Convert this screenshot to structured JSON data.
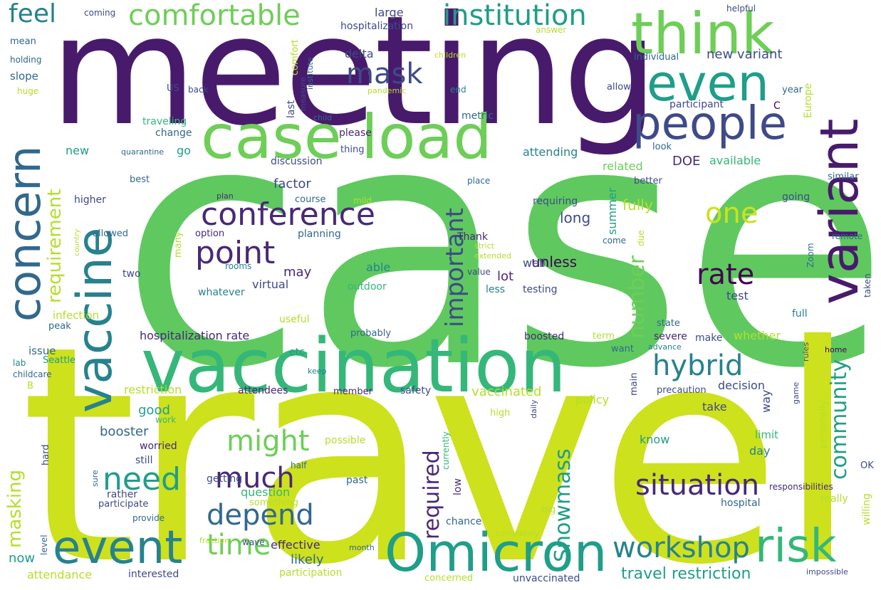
{
  "colors": {
    "background": "#ffffff",
    "palette": [
      "#440154",
      "#482878",
      "#3e4a89",
      "#31688e",
      "#26828e",
      "#1f9e89",
      "#35b779",
      "#6ece58",
      "#b5de2b",
      "#cde11d"
    ]
  },
  "words": [
    {
      "text": "case",
      "color": "#5fc95f"
    },
    {
      "text": "travel",
      "color": "#cde11d"
    },
    {
      "text": "meeting",
      "color": "#481a6c"
    },
    {
      "text": "vaccination",
      "color": "#35b779"
    },
    {
      "text": "variant",
      "color": "#481a6c"
    },
    {
      "text": "vaccine",
      "color": "#26828e"
    },
    {
      "text": "case load",
      "color": "#6ece58"
    },
    {
      "text": "think",
      "color": "#6ece58"
    },
    {
      "text": "concern",
      "color": "#31688e"
    },
    {
      "text": "Omicron",
      "color": "#1f9e89"
    },
    {
      "text": "even",
      "color": "#1f9e89"
    },
    {
      "text": "people",
      "color": "#3e4a89"
    },
    {
      "text": "event",
      "color": "#26828e"
    },
    {
      "text": "risk",
      "color": "#35b779"
    },
    {
      "text": "conference",
      "color": "#482878"
    },
    {
      "text": "point",
      "color": "#482878"
    },
    {
      "text": "comfortable",
      "color": "#6ece58"
    },
    {
      "text": "institution",
      "color": "#1f9e89"
    },
    {
      "text": "feel",
      "color": "#26828e"
    },
    {
      "text": "mask",
      "color": "#3e4a89"
    },
    {
      "text": "rate",
      "color": "#440154"
    },
    {
      "text": "hybrid",
      "color": "#26828e"
    },
    {
      "text": "situation",
      "color": "#482878"
    },
    {
      "text": "workshop",
      "color": "#26828e"
    },
    {
      "text": "need",
      "color": "#1f9e89"
    },
    {
      "text": "depend",
      "color": "#31688e"
    },
    {
      "text": "much",
      "color": "#482878"
    },
    {
      "text": "might",
      "color": "#6ece58"
    },
    {
      "text": "time",
      "color": "#6ece58"
    },
    {
      "text": "one",
      "color": "#cde11d"
    },
    {
      "text": "important",
      "color": "#3e4a89"
    },
    {
      "text": "number",
      "color": "#6ece58"
    },
    {
      "text": "community",
      "color": "#1f9e89"
    },
    {
      "text": "Snowmass",
      "color": "#1f9e89"
    },
    {
      "text": "required",
      "color": "#482878"
    },
    {
      "text": "requirement",
      "color": "#b5de2b"
    },
    {
      "text": "masking",
      "color": "#b5de2b"
    },
    {
      "text": "travel restriction",
      "color": "#1f9e89"
    },
    {
      "text": "vaccinated",
      "color": "#b5de2b"
    },
    {
      "text": "restriction",
      "color": "#b5de2b"
    },
    {
      "text": "booster",
      "color": "#31688e"
    },
    {
      "text": "good",
      "color": "#1f9e89"
    },
    {
      "text": "effective",
      "color": "#482878"
    },
    {
      "text": "likely",
      "color": "#31688e"
    },
    {
      "text": "question",
      "color": "#35b779"
    },
    {
      "text": "attendance",
      "color": "#b5de2b"
    },
    {
      "text": "participation",
      "color": "#b5de2b"
    },
    {
      "text": "now",
      "color": "#1f9e89"
    },
    {
      "text": "new variant",
      "color": "#3e4a89"
    },
    {
      "text": "delta",
      "color": "#3e4a89"
    },
    {
      "text": "large",
      "color": "#3e4a89"
    },
    {
      "text": "hospitalization",
      "color": "#3e4a89"
    },
    {
      "text": "hospitalization rate",
      "color": "#482878"
    },
    {
      "text": "long",
      "color": "#3e4a89"
    },
    {
      "text": "fully",
      "color": "#b5de2b"
    },
    {
      "text": "factor",
      "color": "#3e4a89"
    },
    {
      "text": "may",
      "color": "#482878"
    },
    {
      "text": "virtual",
      "color": "#3e4a89"
    },
    {
      "text": "unless",
      "color": "#440154"
    },
    {
      "text": "lot",
      "color": "#482878"
    },
    {
      "text": "able",
      "color": "#26828e"
    },
    {
      "text": "outdoor",
      "color": "#35b779"
    },
    {
      "text": "less",
      "color": "#26828e"
    },
    {
      "text": "testing",
      "color": "#3e4a89"
    },
    {
      "text": "test",
      "color": "#3e4a89"
    },
    {
      "text": "attending",
      "color": "#26828e"
    },
    {
      "text": "related",
      "color": "#6ece58"
    },
    {
      "text": "DOE",
      "color": "#482878"
    },
    {
      "text": "available",
      "color": "#35b779"
    },
    {
      "text": "going",
      "color": "#3e4a89"
    },
    {
      "text": "participant",
      "color": "#3e4a89"
    },
    {
      "text": "discussion",
      "color": "#3e4a89"
    },
    {
      "text": "please",
      "color": "#482878"
    },
    {
      "text": "thing",
      "color": "#3e4a89"
    },
    {
      "text": "metric",
      "color": "#31688e"
    },
    {
      "text": "change",
      "color": "#31688e"
    },
    {
      "text": "traveling",
      "color": "#35b779"
    },
    {
      "text": "go",
      "color": "#1f9e89"
    },
    {
      "text": "new",
      "color": "#1f9e89"
    },
    {
      "text": "quarantine",
      "color": "#31688e"
    },
    {
      "text": "best",
      "color": "#31688e"
    },
    {
      "text": "higher",
      "color": "#3e4a89"
    },
    {
      "text": "course",
      "color": "#31688e"
    },
    {
      "text": "plan",
      "color": "#482878"
    },
    {
      "text": "planning",
      "color": "#31688e"
    },
    {
      "text": "option",
      "color": "#482878"
    },
    {
      "text": "Thank",
      "color": "#482878"
    },
    {
      "text": "well",
      "color": "#3e4a89"
    },
    {
      "text": "allowed",
      "color": "#31688e"
    },
    {
      "text": "many",
      "color": "#b5de2b"
    },
    {
      "text": "two",
      "color": "#3e4a89"
    },
    {
      "text": "rooms",
      "color": "#26828e"
    },
    {
      "text": "whatever",
      "color": "#26828e"
    },
    {
      "text": "infection",
      "color": "#b5de2b"
    },
    {
      "text": "peak",
      "color": "#31688e"
    },
    {
      "text": "useful",
      "color": "#b5de2b"
    },
    {
      "text": "etc",
      "color": "#1f9e89"
    },
    {
      "text": "probably",
      "color": "#31688e"
    },
    {
      "text": "issue",
      "color": "#31688e"
    },
    {
      "text": "Seattle",
      "color": "#1f9e89"
    },
    {
      "text": "lab",
      "color": "#26828e"
    },
    {
      "text": "childcare",
      "color": "#31688e"
    },
    {
      "text": "B",
      "color": "#b5de2b"
    },
    {
      "text": "attendees",
      "color": "#482878"
    },
    {
      "text": "member",
      "color": "#482878"
    },
    {
      "text": "safety",
      "color": "#3e4a89"
    },
    {
      "text": "worried",
      "color": "#482878"
    },
    {
      "text": "still",
      "color": "#3e4a89"
    },
    {
      "text": "getting",
      "color": "#3e4a89"
    },
    {
      "text": "rather",
      "color": "#3e4a89"
    },
    {
      "text": "participate",
      "color": "#3e4a89"
    },
    {
      "text": "something",
      "color": "#b5de2b"
    },
    {
      "text": "provide",
      "color": "#31688e"
    },
    {
      "text": "level",
      "color": "#31688e"
    },
    {
      "text": "wave",
      "color": "#3e4a89"
    },
    {
      "text": "month",
      "color": "#31688e"
    },
    {
      "text": "interested",
      "color": "#3e4a89"
    },
    {
      "text": "fraction",
      "color": "#b5de2b"
    },
    {
      "text": "past",
      "color": "#31688e"
    },
    {
      "text": "possible",
      "color": "#b5de2b"
    },
    {
      "text": "half",
      "color": "#31688e"
    },
    {
      "text": "currently",
      "color": "#35b779"
    },
    {
      "text": "low",
      "color": "#482878"
    },
    {
      "text": "chance",
      "color": "#31688e"
    },
    {
      "text": "concerned",
      "color": "#b5de2b"
    },
    {
      "text": "unvaccinated",
      "color": "#3e4a89"
    },
    {
      "text": "completely",
      "color": "#b5de2b"
    },
    {
      "text": "big",
      "color": "#b5de2b"
    },
    {
      "text": "high",
      "color": "#b5de2b"
    },
    {
      "text": "know",
      "color": "#1f9e89"
    },
    {
      "text": "limit",
      "color": "#35b779"
    },
    {
      "text": "day",
      "color": "#26828e"
    },
    {
      "text": "way",
      "color": "#3e4a89"
    },
    {
      "text": "take",
      "color": "#3e4a89"
    },
    {
      "text": "decision",
      "color": "#3e4a89"
    },
    {
      "text": "policy",
      "color": "#b5de2b"
    },
    {
      "text": "precaution",
      "color": "#3e4a89"
    },
    {
      "text": "main",
      "color": "#3e4a89"
    },
    {
      "text": "want",
      "color": "#31688e"
    },
    {
      "text": "severe",
      "color": "#482878"
    },
    {
      "text": "make",
      "color": "#3e4a89"
    },
    {
      "text": "whether",
      "color": "#b5de2b"
    },
    {
      "text": "boosted",
      "color": "#482878"
    },
    {
      "text": "term",
      "color": "#b5de2b"
    },
    {
      "text": "advance",
      "color": "#26828e"
    },
    {
      "text": "state",
      "color": "#31688e"
    },
    {
      "text": "full",
      "color": "#26828e"
    },
    {
      "text": "rules",
      "color": "#3e4a89"
    },
    {
      "text": "home",
      "color": "#440154"
    },
    {
      "text": "game",
      "color": "#3e4a89"
    },
    {
      "text": "daily",
      "color": "#3e4a89"
    },
    {
      "text": "personally",
      "color": "#b5de2b"
    },
    {
      "text": "responsibilities",
      "color": "#482878"
    },
    {
      "text": "hospital",
      "color": "#31688e"
    },
    {
      "text": "really",
      "color": "#b5de2b"
    },
    {
      "text": "willing",
      "color": "#b5de2b"
    },
    {
      "text": "OK",
      "color": "#3e4a89"
    },
    {
      "text": "impossible",
      "color": "#3e4a89"
    },
    {
      "text": "summer",
      "color": "#1f9e89"
    },
    {
      "text": "requiring",
      "color": "#3e4a89"
    },
    {
      "text": "strict",
      "color": "#b5de2b"
    },
    {
      "text": "extended",
      "color": "#b5de2b"
    },
    {
      "text": "value",
      "color": "#3e4a89"
    },
    {
      "text": "come",
      "color": "#31688e"
    },
    {
      "text": "due",
      "color": "#b5de2b"
    },
    {
      "text": "mild",
      "color": "#b5de2b"
    },
    {
      "text": "place",
      "color": "#31688e"
    },
    {
      "text": "better",
      "color": "#3e4a89"
    },
    {
      "text": "similar",
      "color": "#31688e"
    },
    {
      "text": "remote",
      "color": "#31688e"
    },
    {
      "text": "Zoom",
      "color": "#31688e"
    },
    {
      "text": "taken",
      "color": "#3e4a89"
    },
    {
      "text": "look",
      "color": "#31688e"
    },
    {
      "text": "C",
      "color": "#440154"
    },
    {
      "text": "Europe",
      "color": "#b5de2b"
    },
    {
      "text": "year",
      "color": "#31688e"
    },
    {
      "text": "individual",
      "color": "#31688e"
    },
    {
      "text": "allow",
      "color": "#3e4a89"
    },
    {
      "text": "end",
      "color": "#26828e"
    },
    {
      "text": "answer",
      "color": "#b5de2b"
    },
    {
      "text": "children",
      "color": "#b5de2b"
    },
    {
      "text": "pandemic",
      "color": "#b5de2b"
    },
    {
      "text": "helpful",
      "color": "#3e4a89"
    },
    {
      "text": "child",
      "color": "#31688e"
    },
    {
      "text": "comfort",
      "color": "#b5de2b"
    },
    {
      "text": "institute",
      "color": "#31688e"
    },
    {
      "text": "measure",
      "color": "#3e4a89"
    },
    {
      "text": "last",
      "color": "#3e4a89"
    },
    {
      "text": "coming",
      "color": "#3e4a89"
    },
    {
      "text": "mean",
      "color": "#31688e"
    },
    {
      "text": "holding",
      "color": "#31688e"
    },
    {
      "text": "slope",
      "color": "#31688e"
    },
    {
      "text": "huge",
      "color": "#b5de2b"
    },
    {
      "text": "US",
      "color": "#3e4a89"
    },
    {
      "text": "back",
      "color": "#3e4a89"
    },
    {
      "text": "country",
      "color": "#b5de2b"
    },
    {
      "text": "sure",
      "color": "#31688e"
    },
    {
      "text": "hard",
      "color": "#3e4a89"
    },
    {
      "text": "keep",
      "color": "#26828e"
    },
    {
      "text": "work",
      "color": "#35b779"
    }
  ]
}
